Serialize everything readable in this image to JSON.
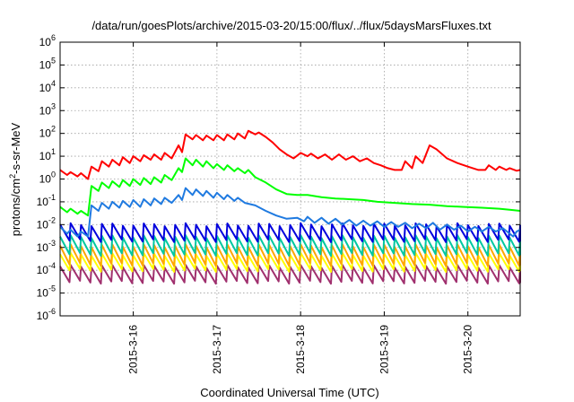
{
  "chart_data": {
    "type": "line",
    "title": "/data/run/goesPlots/archive/2015-03-20/15:00/flux/../flux/5daysMarsFluxes.txt",
    "xlabel": "Coordinated Universal Time (UTC)",
    "ylabel": "protons/cm2-s-sr-MeV",
    "ylabel_base": "protons/cm",
    "ylabel_sup": "2",
    "ylabel_rest": "-s-sr-MeV",
    "y_scale": "log",
    "ylim": [
      1e-06,
      1000000.0
    ],
    "y_ticks": [
      {
        "exp": -6,
        "base": "10",
        "sup": "-6"
      },
      {
        "exp": -5,
        "base": "10",
        "sup": "-5"
      },
      {
        "exp": -4,
        "base": "10",
        "sup": "-4"
      },
      {
        "exp": -3,
        "base": "10",
        "sup": "-3"
      },
      {
        "exp": -2,
        "base": "10",
        "sup": "-2"
      },
      {
        "exp": -1,
        "base": "10",
        "sup": "-1"
      },
      {
        "exp": 0,
        "base": "10",
        "sup": "0"
      },
      {
        "exp": 1,
        "base": "10",
        "sup": "1"
      },
      {
        "exp": 2,
        "base": "10",
        "sup": "2"
      },
      {
        "exp": 3,
        "base": "10",
        "sup": "3"
      },
      {
        "exp": 4,
        "base": "10",
        "sup": "4"
      },
      {
        "exp": 5,
        "base": "10",
        "sup": "5"
      },
      {
        "exp": 6,
        "base": "10",
        "sup": "6"
      }
    ],
    "xlim": [
      "2015-03-15 03:00",
      "2015-03-20 15:00"
    ],
    "x_ticks": [
      {
        "label": "2015-3-16",
        "date": "2015-03-16 00:00"
      },
      {
        "label": "2015-3-17",
        "date": "2015-03-17 00:00"
      },
      {
        "label": "2015-3-18",
        "date": "2015-03-18 00:00"
      },
      {
        "label": "2015-3-19",
        "date": "2015-03-19 00:00"
      },
      {
        "label": "2015-3-20",
        "date": "2015-03-20 00:00"
      }
    ],
    "grid": true,
    "series": [
      {
        "color": "#ff0000",
        "points": [
          [
            "2015-03-15 03:00",
            2.5
          ],
          [
            "2015-03-15 05:00",
            1.5
          ],
          [
            "2015-03-15 06:00",
            2
          ],
          [
            "2015-03-15 08:00",
            1.3
          ],
          [
            "2015-03-15 09:00",
            1.8
          ],
          [
            "2015-03-15 11:00",
            1.0
          ],
          [
            "2015-03-15 12:00",
            3.5
          ],
          [
            "2015-03-15 14:00",
            2.2
          ],
          [
            "2015-03-15 15:00",
            6
          ],
          [
            "2015-03-15 17:00",
            3.5
          ],
          [
            "2015-03-15 18:00",
            7
          ],
          [
            "2015-03-15 20:00",
            4
          ],
          [
            "2015-03-15 21:00",
            9
          ],
          [
            "2015-03-15 23:00",
            5
          ],
          [
            "2015-03-16 00:00",
            10
          ],
          [
            "2015-03-16 02:00",
            6
          ],
          [
            "2015-03-16 03:00",
            11
          ],
          [
            "2015-03-16 05:00",
            7
          ],
          [
            "2015-03-16 06:00",
            12
          ],
          [
            "2015-03-16 08:00",
            7
          ],
          [
            "2015-03-16 09:00",
            14
          ],
          [
            "2015-03-16 11:00",
            8
          ],
          [
            "2015-03-16 13:00",
            30
          ],
          [
            "2015-03-16 14:00",
            15
          ],
          [
            "2015-03-16 15:00",
            90
          ],
          [
            "2015-03-16 17:00",
            55
          ],
          [
            "2015-03-16 18:00",
            85
          ],
          [
            "2015-03-16 20:00",
            50
          ],
          [
            "2015-03-16 21:00",
            80
          ],
          [
            "2015-03-16 23:00",
            50
          ],
          [
            "2015-03-17 00:00",
            85
          ],
          [
            "2015-03-17 02:00",
            50
          ],
          [
            "2015-03-17 03:00",
            90
          ],
          [
            "2015-03-17 05:00",
            55
          ],
          [
            "2015-03-17 06:00",
            100
          ],
          [
            "2015-03-17 08:00",
            60
          ],
          [
            "2015-03-17 09:00",
            130
          ],
          [
            "2015-03-17 11:00",
            90
          ],
          [
            "2015-03-17 12:00",
            110
          ],
          [
            "2015-03-17 14:00",
            70
          ],
          [
            "2015-03-17 16:00",
            40
          ],
          [
            "2015-03-17 18:00",
            20
          ],
          [
            "2015-03-17 20:00",
            12
          ],
          [
            "2015-03-17 22:00",
            8
          ],
          [
            "2015-03-18 00:00",
            14
          ],
          [
            "2015-03-18 02:00",
            10
          ],
          [
            "2015-03-18 03:00",
            13
          ],
          [
            "2015-03-18 05:00",
            8
          ],
          [
            "2015-03-18 07:00",
            12
          ],
          [
            "2015-03-18 09:00",
            7
          ],
          [
            "2015-03-18 11:00",
            12
          ],
          [
            "2015-03-18 13:00",
            7
          ],
          [
            "2015-03-18 15:00",
            10
          ],
          [
            "2015-03-18 17:00",
            6
          ],
          [
            "2015-03-18 19:00",
            8
          ],
          [
            "2015-03-18 21:00",
            5
          ],
          [
            "2015-03-18 23:00",
            4
          ],
          [
            "2015-03-19 01:00",
            3
          ],
          [
            "2015-03-19 03:00",
            2.5
          ],
          [
            "2015-03-19 05:00",
            2.5
          ],
          [
            "2015-03-19 06:00",
            6
          ],
          [
            "2015-03-19 08:00",
            3
          ],
          [
            "2015-03-19 09:00",
            10
          ],
          [
            "2015-03-19 11:00",
            5
          ],
          [
            "2015-03-19 13:00",
            30
          ],
          [
            "2015-03-19 15:00",
            20
          ],
          [
            "2015-03-19 18:00",
            8
          ],
          [
            "2015-03-19 21:00",
            5
          ],
          [
            "2015-03-20 00:00",
            3.5
          ],
          [
            "2015-03-20 03:00",
            2.5
          ],
          [
            "2015-03-20 05:00",
            2.5
          ],
          [
            "2015-03-20 06:00",
            4
          ],
          [
            "2015-03-20 08:00",
            2.5
          ],
          [
            "2015-03-20 09:00",
            3.5
          ],
          [
            "2015-03-20 11:00",
            2.5
          ],
          [
            "2015-03-20 12:00",
            3
          ],
          [
            "2015-03-20 14:00",
            2.3
          ],
          [
            "2015-03-20 15:00",
            2.5
          ]
        ]
      },
      {
        "color": "#00ff00",
        "points": [
          [
            "2015-03-15 03:00",
            0.06
          ],
          [
            "2015-03-15 05:00",
            0.035
          ],
          [
            "2015-03-15 06:00",
            0.05
          ],
          [
            "2015-03-15 08:00",
            0.03
          ],
          [
            "2015-03-15 09:00",
            0.04
          ],
          [
            "2015-03-15 11:00",
            0.025
          ],
          [
            "2015-03-15 12:00",
            0.5
          ],
          [
            "2015-03-15 14:00",
            0.3
          ],
          [
            "2015-03-15 15:00",
            0.7
          ],
          [
            "2015-03-15 17:00",
            0.4
          ],
          [
            "2015-03-15 18:00",
            0.8
          ],
          [
            "2015-03-15 20:00",
            0.45
          ],
          [
            "2015-03-15 21:00",
            0.9
          ],
          [
            "2015-03-15 23:00",
            0.5
          ],
          [
            "2015-03-16 00:00",
            1.0
          ],
          [
            "2015-03-16 02:00",
            0.55
          ],
          [
            "2015-03-16 03:00",
            1.1
          ],
          [
            "2015-03-16 05:00",
            0.6
          ],
          [
            "2015-03-16 06:00",
            1.2
          ],
          [
            "2015-03-16 08:00",
            0.7
          ],
          [
            "2015-03-16 09:00",
            1.5
          ],
          [
            "2015-03-16 11:00",
            0.9
          ],
          [
            "2015-03-16 13:00",
            3
          ],
          [
            "2015-03-16 14:00",
            2
          ],
          [
            "2015-03-16 15:00",
            8
          ],
          [
            "2015-03-16 17:00",
            4
          ],
          [
            "2015-03-16 18:00",
            7
          ],
          [
            "2015-03-16 20:00",
            3.5
          ],
          [
            "2015-03-16 21:00",
            6
          ],
          [
            "2015-03-16 23:00",
            3
          ],
          [
            "2015-03-17 00:00",
            4.5
          ],
          [
            "2015-03-17 02:00",
            2.5
          ],
          [
            "2015-03-17 03:00",
            4
          ],
          [
            "2015-03-17 05:00",
            2.2
          ],
          [
            "2015-03-17 06:00",
            3
          ],
          [
            "2015-03-17 08:00",
            1.8
          ],
          [
            "2015-03-17 09:00",
            2.5
          ],
          [
            "2015-03-17 11:00",
            1.2
          ],
          [
            "2015-03-17 14:00",
            0.7
          ],
          [
            "2015-03-17 17:00",
            0.35
          ],
          [
            "2015-03-17 20:00",
            0.22
          ],
          [
            "2015-03-17 23:00",
            0.2
          ],
          [
            "2015-03-18 02:00",
            0.2
          ],
          [
            "2015-03-18 06:00",
            0.16
          ],
          [
            "2015-03-18 10:00",
            0.14
          ],
          [
            "2015-03-18 14:00",
            0.13
          ],
          [
            "2015-03-18 18:00",
            0.12
          ],
          [
            "2015-03-18 22:00",
            0.1
          ],
          [
            "2015-03-19 03:00",
            0.09
          ],
          [
            "2015-03-19 08:00",
            0.08
          ],
          [
            "2015-03-19 13:00",
            0.075
          ],
          [
            "2015-03-19 18:00",
            0.065
          ],
          [
            "2015-03-19 23:00",
            0.06
          ],
          [
            "2015-03-20 04:00",
            0.055
          ],
          [
            "2015-03-20 09:00",
            0.05
          ],
          [
            "2015-03-20 12:00",
            0.045
          ],
          [
            "2015-03-20 15:00",
            0.04
          ]
        ]
      },
      {
        "color": "#1f7ae0",
        "points": [
          [
            "2015-03-15 03:00",
            0.008
          ],
          [
            "2015-03-15 05:00",
            0.004
          ],
          [
            "2015-03-15 06:00",
            0.006
          ],
          [
            "2015-03-15 08:00",
            0.003
          ],
          [
            "2015-03-15 09:00",
            0.005
          ],
          [
            "2015-03-15 11:00",
            0.003
          ],
          [
            "2015-03-15 12:00",
            0.07
          ],
          [
            "2015-03-15 14:00",
            0.04
          ],
          [
            "2015-03-15 15:00",
            0.09
          ],
          [
            "2015-03-15 17:00",
            0.05
          ],
          [
            "2015-03-15 18:00",
            0.1
          ],
          [
            "2015-03-15 20:00",
            0.055
          ],
          [
            "2015-03-15 21:00",
            0.11
          ],
          [
            "2015-03-15 23:00",
            0.06
          ],
          [
            "2015-03-16 00:00",
            0.12
          ],
          [
            "2015-03-16 02:00",
            0.06
          ],
          [
            "2015-03-16 03:00",
            0.13
          ],
          [
            "2015-03-16 05:00",
            0.07
          ],
          [
            "2015-03-16 06:00",
            0.14
          ],
          [
            "2015-03-16 08:00",
            0.08
          ],
          [
            "2015-03-16 09:00",
            0.15
          ],
          [
            "2015-03-16 11:00",
            0.09
          ],
          [
            "2015-03-16 13:00",
            0.2
          ],
          [
            "2015-03-16 14:00",
            0.12
          ],
          [
            "2015-03-16 15:00",
            0.4
          ],
          [
            "2015-03-16 17:00",
            0.2
          ],
          [
            "2015-03-16 18:00",
            0.35
          ],
          [
            "2015-03-16 20:00",
            0.18
          ],
          [
            "2015-03-16 21:00",
            0.3
          ],
          [
            "2015-03-16 23:00",
            0.15
          ],
          [
            "2015-03-17 00:00",
            0.25
          ],
          [
            "2015-03-17 02:00",
            0.13
          ],
          [
            "2015-03-17 03:00",
            0.2
          ],
          [
            "2015-03-17 05:00",
            0.11
          ],
          [
            "2015-03-17 06:00",
            0.15
          ],
          [
            "2015-03-17 08:00",
            0.09
          ],
          [
            "2015-03-17 11:00",
            0.07
          ],
          [
            "2015-03-17 14:00",
            0.04
          ],
          [
            "2015-03-17 17:00",
            0.025
          ],
          [
            "2015-03-17 20:00",
            0.018
          ],
          [
            "2015-03-17 23:00",
            0.02
          ],
          [
            "2015-03-18 01:00",
            0.014
          ],
          [
            "2015-03-18 02:00",
            0.022
          ],
          [
            "2015-03-18 04:00",
            0.012
          ],
          [
            "2015-03-18 06:00",
            0.02
          ],
          [
            "2015-03-18 08:00",
            0.011
          ],
          [
            "2015-03-18 10:00",
            0.018
          ],
          [
            "2015-03-18 12:00",
            0.01
          ],
          [
            "2015-03-18 14:00",
            0.016
          ],
          [
            "2015-03-18 16:00",
            0.009
          ],
          [
            "2015-03-18 18:00",
            0.015
          ],
          [
            "2015-03-18 20:00",
            0.009
          ],
          [
            "2015-03-18 22:00",
            0.014
          ],
          [
            "2015-03-19 00:00",
            0.008
          ],
          [
            "2015-03-19 02:00",
            0.013
          ],
          [
            "2015-03-19 04:00",
            0.008
          ],
          [
            "2015-03-19 06:00",
            0.012
          ],
          [
            "2015-03-19 08:00",
            0.007
          ],
          [
            "2015-03-19 10:00",
            0.011
          ],
          [
            "2015-03-19 12:00",
            0.007
          ],
          [
            "2015-03-19 14:00",
            0.012
          ],
          [
            "2015-03-19 16:00",
            0.006
          ],
          [
            "2015-03-19 18:00",
            0.01
          ],
          [
            "2015-03-19 20:00",
            0.006
          ],
          [
            "2015-03-19 22:00",
            0.009
          ],
          [
            "2015-03-20 00:00",
            0.005
          ],
          [
            "2015-03-20 02:00",
            0.008
          ],
          [
            "2015-03-20 04:00",
            0.005
          ],
          [
            "2015-03-20 06:00",
            0.008
          ],
          [
            "2015-03-20 08:00",
            0.005
          ],
          [
            "2015-03-20 10:00",
            0.007
          ],
          [
            "2015-03-20 12:00",
            0.004
          ],
          [
            "2015-03-20 13:00",
            0.003
          ],
          [
            "2015-03-20 14:00",
            0.005
          ],
          [
            "2015-03-20 15:00",
            0.006
          ]
        ]
      }
    ],
    "sawtooth_series": [
      {
        "color": "#0000dd",
        "high": 0.01,
        "low": 0.002
      },
      {
        "color": "#00c8a0",
        "high": 0.003,
        "low": 0.0005
      },
      {
        "color": "#ffa500",
        "high": 0.0012,
        "low": 0.00018
      },
      {
        "color": "#ffff00",
        "high": 0.0005,
        "low": 0.0001
      },
      {
        "color": "#a0306e",
        "high": 0.00015,
        "low": 3e-05
      }
    ],
    "sawtooth_period_hours": 3
  }
}
